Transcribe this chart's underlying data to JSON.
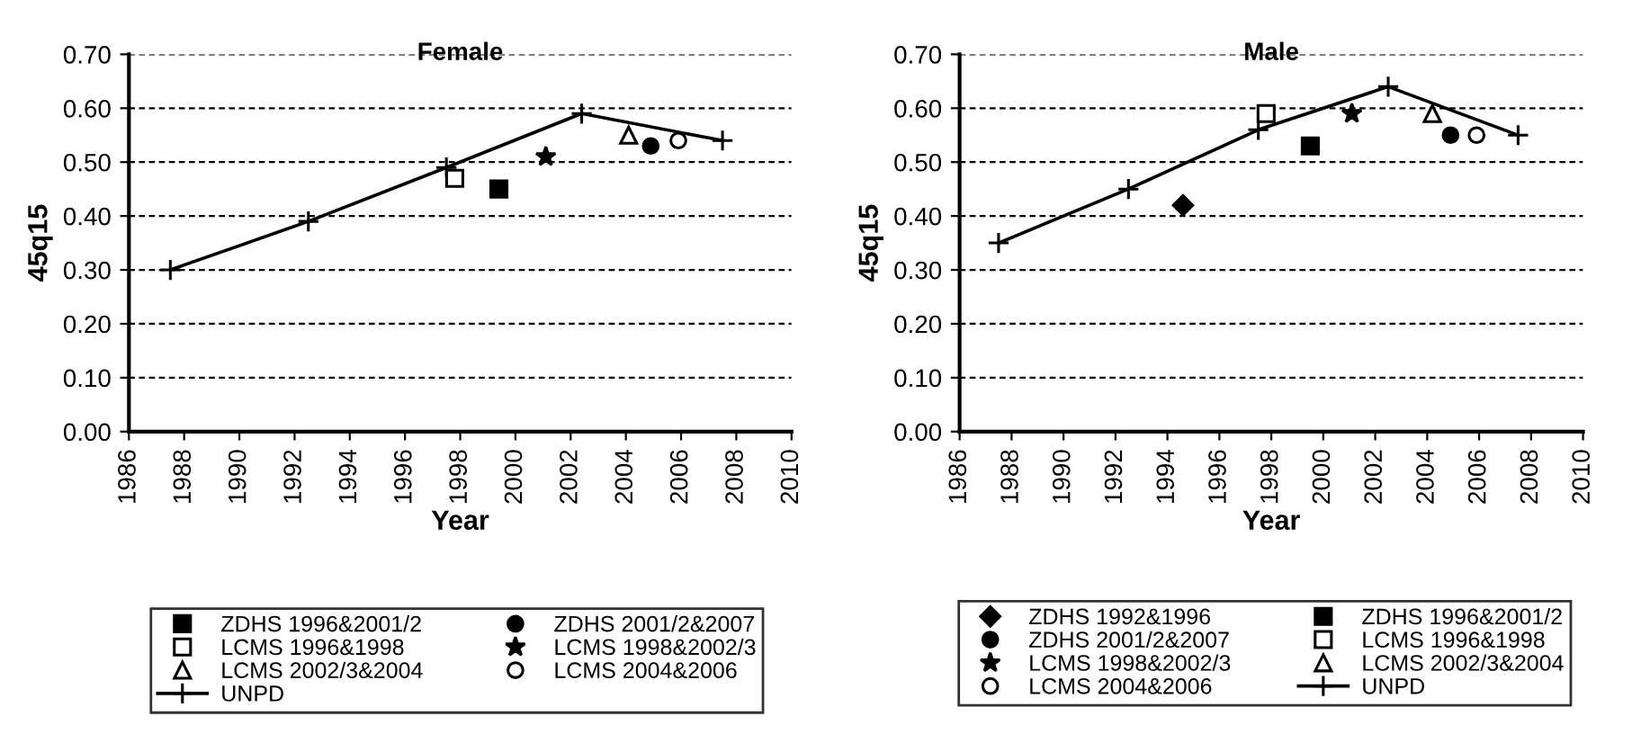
{
  "chart_data": [
    {
      "type": "scatter",
      "title": "Female",
      "xlabel": "Year",
      "ylabel": "45q15",
      "xlim": [
        1986,
        2010
      ],
      "xticks": [
        1986,
        1988,
        1990,
        1992,
        1994,
        1996,
        1998,
        2000,
        2002,
        2004,
        2006,
        2008,
        2010
      ],
      "ylim": [
        0,
        0.7
      ],
      "yticks": [
        {
          "value": 0,
          "label": "0.00"
        },
        {
          "value": 0.1,
          "label": "0.10"
        },
        {
          "value": 0.2,
          "label": "0.20"
        },
        {
          "value": 0.3,
          "label": "0.30"
        },
        {
          "value": 0.4,
          "label": "0.40"
        },
        {
          "value": 0.5,
          "label": "0.50"
        },
        {
          "value": 0.6,
          "label": "0.60"
        },
        {
          "value": 0.7,
          "label": "0.70"
        }
      ],
      "grid": "y",
      "legend": "bottom",
      "series": [
        {
          "name": "ZDHS 1996&2001/2",
          "color": "#000000",
          "colors": [
            "#000000"
          ],
          "marker": "square",
          "x": [
            1999.4
          ],
          "values": [
            0.45
          ]
        },
        {
          "name": "ZDHS 2001/2&2007",
          "color": "#000000",
          "colors": [
            "#000000"
          ],
          "marker": "circle",
          "x": [
            2004.9
          ],
          "values": [
            0.53
          ]
        },
        {
          "name": "LCMS 1996&1998",
          "color": "#000000",
          "colors": [
            "#ffffff"
          ],
          "marker": "square",
          "x": [
            1997.8
          ],
          "values": [
            0.47
          ]
        },
        {
          "name": "LCMS 1998&2002/3",
          "color": "#000000",
          "marker": "star",
          "x": [
            2001.1
          ],
          "values": [
            0.51
          ]
        },
        {
          "name": "LCMS 2002/3&2004",
          "color": "#000000",
          "colors": [
            "#ffffff"
          ],
          "marker": "triangle",
          "x": [
            2004.1
          ],
          "values": [
            0.55
          ]
        },
        {
          "name": "LCMS 2004&2006",
          "color": "#000000",
          "colors": [
            "#ffffff"
          ],
          "marker": "circle",
          "x": [
            2005.9
          ],
          "values": [
            0.54
          ]
        },
        {
          "name": "UNPD",
          "type": "line",
          "color": "#000000",
          "marker": "cross",
          "x": [
            1987.5,
            1992.5,
            1997.5,
            2002.4,
            2007.5
          ],
          "values": [
            0.3,
            0.39,
            0.49,
            0.59,
            0.54
          ]
        }
      ]
    },
    {
      "type": "scatter",
      "title": "Male",
      "xlabel": "Year",
      "ylabel": "45q15",
      "xlim": [
        1986,
        2010
      ],
      "xticks": [
        1986,
        1988,
        1990,
        1992,
        1994,
        1996,
        1998,
        2000,
        2002,
        2004,
        2006,
        2008,
        2010
      ],
      "ylim": [
        0,
        0.7
      ],
      "yticks": [
        {
          "value": 0,
          "label": "0.00"
        },
        {
          "value": 0.1,
          "label": "0.10"
        },
        {
          "value": 0.2,
          "label": "0.20"
        },
        {
          "value": 0.3,
          "label": "0.30"
        },
        {
          "value": 0.4,
          "label": "0.40"
        },
        {
          "value": 0.5,
          "label": "0.50"
        },
        {
          "value": 0.6,
          "label": "0.60"
        },
        {
          "value": 0.7,
          "label": "0.70"
        }
      ],
      "grid": "y",
      "legend": "bottom",
      "series": [
        {
          "name": "ZDHS 1992&1996",
          "color": "#000000",
          "colors": [
            "#000000"
          ],
          "marker": "diamond",
          "x": [
            1994.6
          ],
          "values": [
            0.42
          ]
        },
        {
          "name": "ZDHS 1996&2001/2",
          "color": "#000000",
          "colors": [
            "#000000"
          ],
          "marker": "square",
          "x": [
            1999.5
          ],
          "values": [
            0.53
          ]
        },
        {
          "name": "ZDHS 2001/2&2007",
          "color": "#000000",
          "colors": [
            "#000000"
          ],
          "marker": "circle",
          "x": [
            2004.9
          ],
          "values": [
            0.55
          ]
        },
        {
          "name": "LCMS 1996&1998",
          "color": "#000000",
          "colors": [
            "#ffffff"
          ],
          "marker": "square",
          "x": [
            1997.8
          ],
          "values": [
            0.59
          ]
        },
        {
          "name": "LCMS 1998&2002/3",
          "color": "#000000",
          "marker": "star",
          "x": [
            2001.1
          ],
          "values": [
            0.59
          ]
        },
        {
          "name": "LCMS 2002/3&2004",
          "color": "#000000",
          "colors": [
            "#ffffff"
          ],
          "marker": "triangle",
          "x": [
            2004.2
          ],
          "values": [
            0.59
          ]
        },
        {
          "name": "LCMS 2004&2006",
          "color": "#000000",
          "colors": [
            "#ffffff"
          ],
          "marker": "circle",
          "x": [
            2005.9
          ],
          "values": [
            0.55
          ]
        },
        {
          "name": "UNPD",
          "type": "line",
          "color": "#000000",
          "marker": "cross",
          "x": [
            1987.5,
            1992.5,
            1997.5,
            2002.5,
            2007.5
          ],
          "values": [
            0.35,
            0.45,
            0.56,
            0.64,
            0.55
          ]
        }
      ]
    }
  ]
}
